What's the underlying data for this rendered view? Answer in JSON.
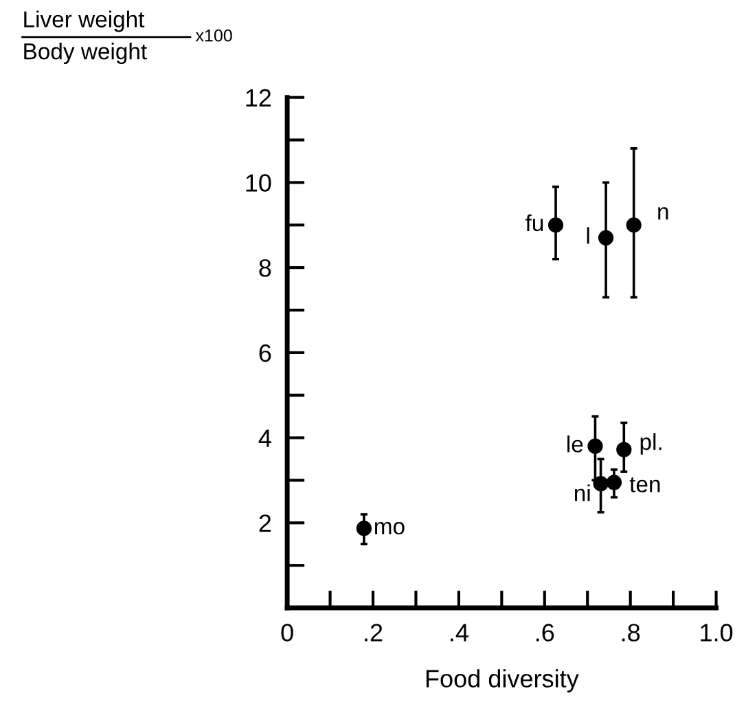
{
  "chart_data": {
    "type": "scatter",
    "xlabel": "Food diversity",
    "ylabel": "Liver weight\nBody weight\nx100",
    "x": [
      0.626,
      0.743,
      0.808,
      0.179,
      0.718,
      0.731,
      0.762,
      0.785
    ],
    "series": [
      {
        "color": "#000000",
        "values": [
          9.0,
          8.7,
          9.0,
          1.87,
          3.8,
          2.92,
          2.95,
          3.72
        ],
        "errors": [
          [
            8.2,
            9.9
          ],
          [
            7.3,
            10.0
          ],
          [
            7.3,
            10.8
          ],
          [
            1.5,
            2.2
          ],
          [
            3.0,
            4.5
          ],
          [
            2.25,
            3.5
          ],
          [
            2.6,
            3.25
          ],
          [
            3.2,
            4.35
          ]
        ]
      }
    ],
    "annotations": [
      {
        "text": "fu",
        "x": 0.626,
        "y": 9.0
      },
      {
        "text": "l",
        "x": 0.743,
        "y": 8.7
      },
      {
        "text": "n",
        "x": 0.808,
        "y": 9.0
      },
      {
        "text": "mo",
        "x": 0.179,
        "y": 1.87
      },
      {
        "text": "le",
        "x": 0.718,
        "y": 3.8
      },
      {
        "text": "ni",
        "x": 0.731,
        "y": 2.92
      },
      {
        "text": "ten",
        "x": 0.762,
        "y": 2.95
      },
      {
        "text": "pl.",
        "x": 0.785,
        "y": 3.72
      }
    ],
    "xlim": [
      0,
      1.0
    ],
    "ylim": [
      0,
      12
    ],
    "xticks": [
      {
        "value": 0,
        "label": "0"
      },
      {
        "value": 0.1,
        "label": null
      },
      {
        "value": 0.2,
        "label": ".2"
      },
      {
        "value": 0.3,
        "label": null
      },
      {
        "value": 0.4,
        "label": ".4"
      },
      {
        "value": 0.5,
        "label": null
      },
      {
        "value": 0.6,
        "label": ".6"
      },
      {
        "value": 0.7,
        "label": null
      },
      {
        "value": 0.8,
        "label": ".8"
      },
      {
        "value": 0.9,
        "label": null
      },
      {
        "value": 1.0,
        "label": "1.0"
      }
    ],
    "yticks": [
      {
        "value": 1,
        "label": null
      },
      2,
      {
        "value": 3,
        "label": null
      },
      4,
      {
        "value": 5,
        "label": null
      },
      6,
      {
        "value": 7,
        "label": null
      },
      8,
      {
        "value": 9,
        "label": null
      },
      10,
      {
        "value": 11,
        "label": null
      },
      12
    ],
    "marker": "circle",
    "grid": false,
    "legend": false
  }
}
